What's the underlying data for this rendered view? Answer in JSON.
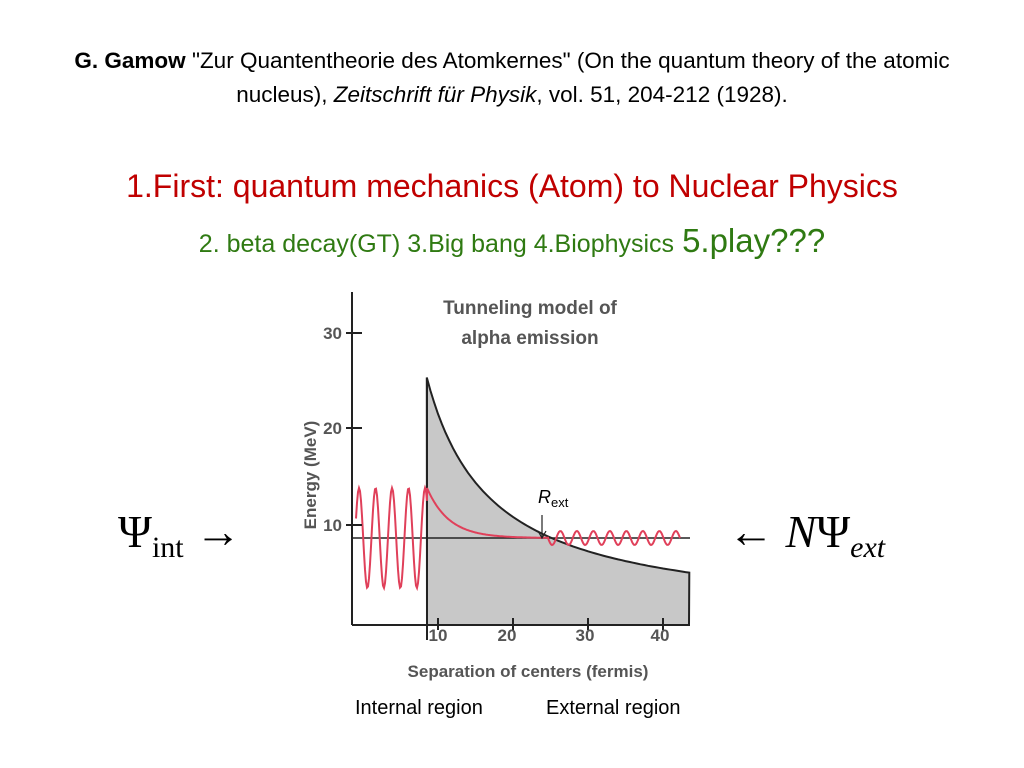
{
  "citation": {
    "author": "G. Gamow",
    "title": "\"Zur Quantentheorie des Atomkernes\" (On the quantum theory of the atomic nucleus),",
    "journal": "Zeitschrift für Physik",
    "details": ", vol. 51, 204-212 (1928)."
  },
  "headline": "1.First: quantum mechanics (Atom) to Nuclear Physics",
  "topics": {
    "list": "2. beta decay(GT) 3.Big bang  4.Biophysics",
    "play": "5.play???"
  },
  "psi_internal": {
    "symbol": "Ψ",
    "subscript": "int",
    "arrow": "→"
  },
  "psi_external": {
    "arrow": "←",
    "coefficient": "N",
    "symbol": "Ψ",
    "subscript": "ext"
  },
  "figure": {
    "title": [
      "Tunneling model of",
      "alpha emission"
    ],
    "y_label": "Energy (MeV)",
    "x_label": "Separation of centers (fermis)",
    "y_ticks": [
      30,
      20,
      10
    ],
    "x_ticks": [
      10,
      20,
      30,
      40
    ],
    "marker": {
      "symbol": "R",
      "subscript": "ext"
    }
  },
  "regions": [
    "Internal region",
    "External region"
  ]
}
